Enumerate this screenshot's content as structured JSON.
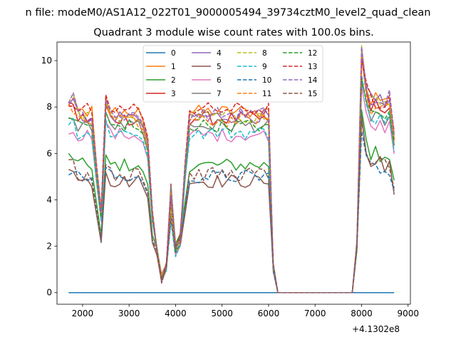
{
  "figure": {
    "suptitle": "n file: modeM0/AS1A12_022T01_9000005494_39734cztM0_level2_quad_clean",
    "title": "Quadrant 3 module wise count rates with 100.0s bins.",
    "offset_label": "+4.1302e8"
  },
  "chart_data": {
    "type": "line",
    "title": "Quadrant 3 module wise count rates with 100.0s bins.",
    "xlabel": "",
    "ylabel": "",
    "x_offset": 413020000,
    "xlim": [
      1450,
      9050
    ],
    "ylim": [
      -0.5,
      10.8
    ],
    "xticks": [
      2000,
      3000,
      4000,
      5000,
      6000,
      7000,
      8000,
      9000
    ],
    "yticks": [
      0,
      2,
      4,
      6,
      8,
      10
    ],
    "grid": false,
    "legend_placement": "top-center",
    "x": [
      1700,
      1800,
      1900,
      2000,
      2100,
      2200,
      2300,
      2400,
      2500,
      2600,
      2700,
      2800,
      2900,
      3000,
      3100,
      3200,
      3300,
      3400,
      3500,
      3600,
      3700,
      3800,
      3900,
      4000,
      4100,
      4200,
      4300,
      4400,
      4500,
      4600,
      4700,
      4800,
      4900,
      5000,
      5100,
      5200,
      5300,
      5400,
      5500,
      5600,
      5700,
      5800,
      5900,
      6000,
      6100,
      6200,
      6300,
      6400,
      6500,
      6600,
      6700,
      6800,
      6900,
      7000,
      7100,
      7200,
      7300,
      7400,
      7500,
      7600,
      7700,
      7800,
      7900,
      8000,
      8100,
      8200,
      8300,
      8400,
      8500,
      8600,
      8700
    ],
    "series": [
      {
        "name": "0",
        "color": "#1f77b4",
        "dash": "solid"
      },
      {
        "name": "1",
        "color": "#ff7f0e",
        "dash": "solid"
      },
      {
        "name": "2",
        "color": "#2ca02c",
        "dash": "solid"
      },
      {
        "name": "3",
        "color": "#d62728",
        "dash": "solid"
      },
      {
        "name": "4",
        "color": "#9467bd",
        "dash": "solid"
      },
      {
        "name": "5",
        "color": "#8c564b",
        "dash": "solid"
      },
      {
        "name": "6",
        "color": "#e377c2",
        "dash": "solid"
      },
      {
        "name": "7",
        "color": "#7f7f7f",
        "dash": "solid"
      },
      {
        "name": "8",
        "color": "#bcbd22",
        "dash": "dashed"
      },
      {
        "name": "9",
        "color": "#17becf",
        "dash": "dashed"
      },
      {
        "name": "10",
        "color": "#1f77b4",
        "dash": "dashed"
      },
      {
        "name": "11",
        "color": "#ff7f0e",
        "dash": "dashed"
      },
      {
        "name": "12",
        "color": "#2ca02c",
        "dash": "dashed"
      },
      {
        "name": "13",
        "color": "#d62728",
        "dash": "dashed"
      },
      {
        "name": "14",
        "color": "#9467bd",
        "dash": "dashed"
      },
      {
        "name": "15",
        "color": "#8c564b",
        "dash": "dashed"
      }
    ]
  }
}
